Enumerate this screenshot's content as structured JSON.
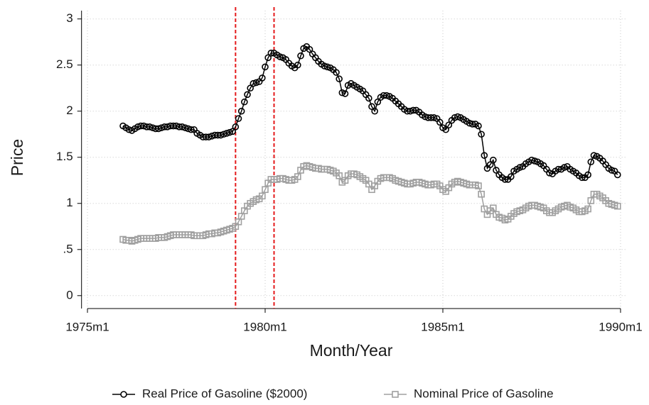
{
  "chart_data": {
    "type": "line",
    "x_label": "Month/Year",
    "y_label": "Price",
    "x": [
      192,
      193,
      194,
      195,
      196,
      197,
      198,
      199,
      200,
      201,
      202,
      203,
      204,
      205,
      206,
      207,
      208,
      209,
      210,
      211,
      212,
      213,
      214,
      215,
      216,
      217,
      218,
      219,
      220,
      221,
      222,
      223,
      224,
      225,
      226,
      227,
      228,
      229,
      230,
      231,
      232,
      233,
      234,
      235,
      236,
      237,
      238,
      239,
      240,
      241,
      242,
      243,
      244,
      245,
      246,
      247,
      248,
      249,
      250,
      251,
      252,
      253,
      254,
      255,
      256,
      257,
      258,
      259,
      260,
      261,
      262,
      263,
      264,
      265,
      266,
      267,
      268,
      269,
      270,
      271,
      272,
      273,
      274,
      275,
      276,
      277,
      278,
      279,
      280,
      281,
      282,
      283,
      284,
      285,
      286,
      287,
      288,
      289,
      290,
      291,
      292,
      293,
      294,
      295,
      296,
      297,
      298,
      299,
      300,
      301,
      302,
      303,
      304,
      305,
      306,
      307,
      308,
      309,
      310,
      311,
      312,
      313,
      314,
      315,
      316,
      317,
      318,
      319,
      320,
      321,
      322,
      323,
      324,
      325,
      326,
      327,
      328,
      329,
      330,
      331,
      332,
      333,
      334,
      335,
      336,
      337,
      338,
      339,
      340,
      341,
      342,
      343,
      344,
      345,
      346,
      347,
      348,
      349,
      350,
      351,
      352,
      353,
      354,
      355,
      356,
      357,
      358,
      359
    ],
    "series": [
      {
        "name": "Real Price of Gasoline ($2000)",
        "color": "#000000",
        "marker": "circle",
        "values": [
          1.84,
          1.82,
          1.8,
          1.79,
          1.81,
          1.83,
          1.84,
          1.84,
          1.83,
          1.83,
          1.82,
          1.81,
          1.81,
          1.82,
          1.83,
          1.83,
          1.84,
          1.84,
          1.84,
          1.83,
          1.83,
          1.82,
          1.81,
          1.8,
          1.8,
          1.76,
          1.74,
          1.72,
          1.72,
          1.72,
          1.73,
          1.74,
          1.74,
          1.74,
          1.75,
          1.76,
          1.77,
          1.78,
          1.83,
          1.92,
          2.0,
          2.1,
          2.18,
          2.25,
          2.3,
          2.31,
          2.32,
          2.36,
          2.48,
          2.58,
          2.63,
          2.63,
          2.61,
          2.59,
          2.58,
          2.56,
          2.52,
          2.49,
          2.47,
          2.5,
          2.6,
          2.68,
          2.7,
          2.67,
          2.62,
          2.58,
          2.54,
          2.51,
          2.49,
          2.48,
          2.47,
          2.45,
          2.42,
          2.35,
          2.2,
          2.19,
          2.28,
          2.3,
          2.28,
          2.26,
          2.24,
          2.22,
          2.18,
          2.14,
          2.05,
          2.0,
          2.1,
          2.15,
          2.17,
          2.17,
          2.16,
          2.14,
          2.11,
          2.08,
          2.05,
          2.02,
          2.0,
          2.0,
          2.01,
          2.01,
          1.99,
          1.96,
          1.94,
          1.93,
          1.93,
          1.93,
          1.92,
          1.88,
          1.82,
          1.8,
          1.85,
          1.9,
          1.93,
          1.94,
          1.93,
          1.91,
          1.89,
          1.87,
          1.86,
          1.86,
          1.84,
          1.75,
          1.52,
          1.38,
          1.42,
          1.47,
          1.36,
          1.31,
          1.28,
          1.26,
          1.26,
          1.29,
          1.35,
          1.37,
          1.39,
          1.4,
          1.43,
          1.45,
          1.47,
          1.46,
          1.45,
          1.43,
          1.41,
          1.37,
          1.33,
          1.32,
          1.35,
          1.37,
          1.37,
          1.39,
          1.4,
          1.37,
          1.35,
          1.33,
          1.3,
          1.28,
          1.28,
          1.31,
          1.45,
          1.52,
          1.51,
          1.49,
          1.46,
          1.42,
          1.38,
          1.36,
          1.35,
          1.31
        ]
      },
      {
        "name": "Nominal Price of Gasoline",
        "color": "#a0a0a0",
        "marker": "square",
        "values": [
          0.61,
          0.6,
          0.6,
          0.59,
          0.6,
          0.61,
          0.62,
          0.62,
          0.62,
          0.62,
          0.62,
          0.62,
          0.63,
          0.63,
          0.63,
          0.64,
          0.65,
          0.66,
          0.66,
          0.66,
          0.66,
          0.66,
          0.66,
          0.66,
          0.65,
          0.65,
          0.65,
          0.65,
          0.66,
          0.67,
          0.67,
          0.68,
          0.68,
          0.69,
          0.7,
          0.71,
          0.72,
          0.73,
          0.75,
          0.8,
          0.86,
          0.92,
          0.97,
          1.0,
          1.02,
          1.04,
          1.05,
          1.08,
          1.15,
          1.22,
          1.26,
          1.26,
          1.26,
          1.27,
          1.27,
          1.26,
          1.25,
          1.25,
          1.26,
          1.29,
          1.36,
          1.4,
          1.41,
          1.4,
          1.39,
          1.38,
          1.38,
          1.37,
          1.37,
          1.37,
          1.36,
          1.35,
          1.33,
          1.3,
          1.23,
          1.25,
          1.3,
          1.32,
          1.32,
          1.31,
          1.29,
          1.27,
          1.25,
          1.21,
          1.15,
          1.19,
          1.24,
          1.27,
          1.28,
          1.28,
          1.28,
          1.27,
          1.25,
          1.24,
          1.23,
          1.22,
          1.21,
          1.21,
          1.22,
          1.23,
          1.23,
          1.22,
          1.21,
          1.2,
          1.2,
          1.21,
          1.21,
          1.19,
          1.15,
          1.13,
          1.17,
          1.21,
          1.23,
          1.24,
          1.23,
          1.22,
          1.21,
          1.2,
          1.2,
          1.2,
          1.19,
          1.1,
          0.94,
          0.88,
          0.92,
          0.95,
          0.88,
          0.85,
          0.84,
          0.82,
          0.83,
          0.86,
          0.89,
          0.91,
          0.92,
          0.93,
          0.95,
          0.97,
          0.98,
          0.98,
          0.97,
          0.96,
          0.95,
          0.92,
          0.9,
          0.9,
          0.92,
          0.94,
          0.96,
          0.97,
          0.98,
          0.96,
          0.95,
          0.93,
          0.91,
          0.91,
          0.92,
          0.94,
          1.03,
          1.1,
          1.1,
          1.08,
          1.06,
          1.03,
          1.0,
          0.99,
          0.98,
          0.97
        ]
      }
    ],
    "xlim": [
      178,
      362
    ],
    "xticks": [
      {
        "value": 180,
        "label": "1975m1"
      },
      {
        "value": 240,
        "label": "1980m1"
      },
      {
        "value": 300,
        "label": "1985m1"
      },
      {
        "value": 360,
        "label": "1990m1"
      }
    ],
    "ylim": [
      -0.14,
      3.09
    ],
    "yticks": [
      0,
      {
        "value": 0.5,
        "label": ".5"
      },
      1,
      1.5,
      2,
      2.5,
      3
    ],
    "grid": true,
    "xlines": [
      230,
      243
    ],
    "xline_color": "#e41a1c",
    "legend": "bottom"
  }
}
